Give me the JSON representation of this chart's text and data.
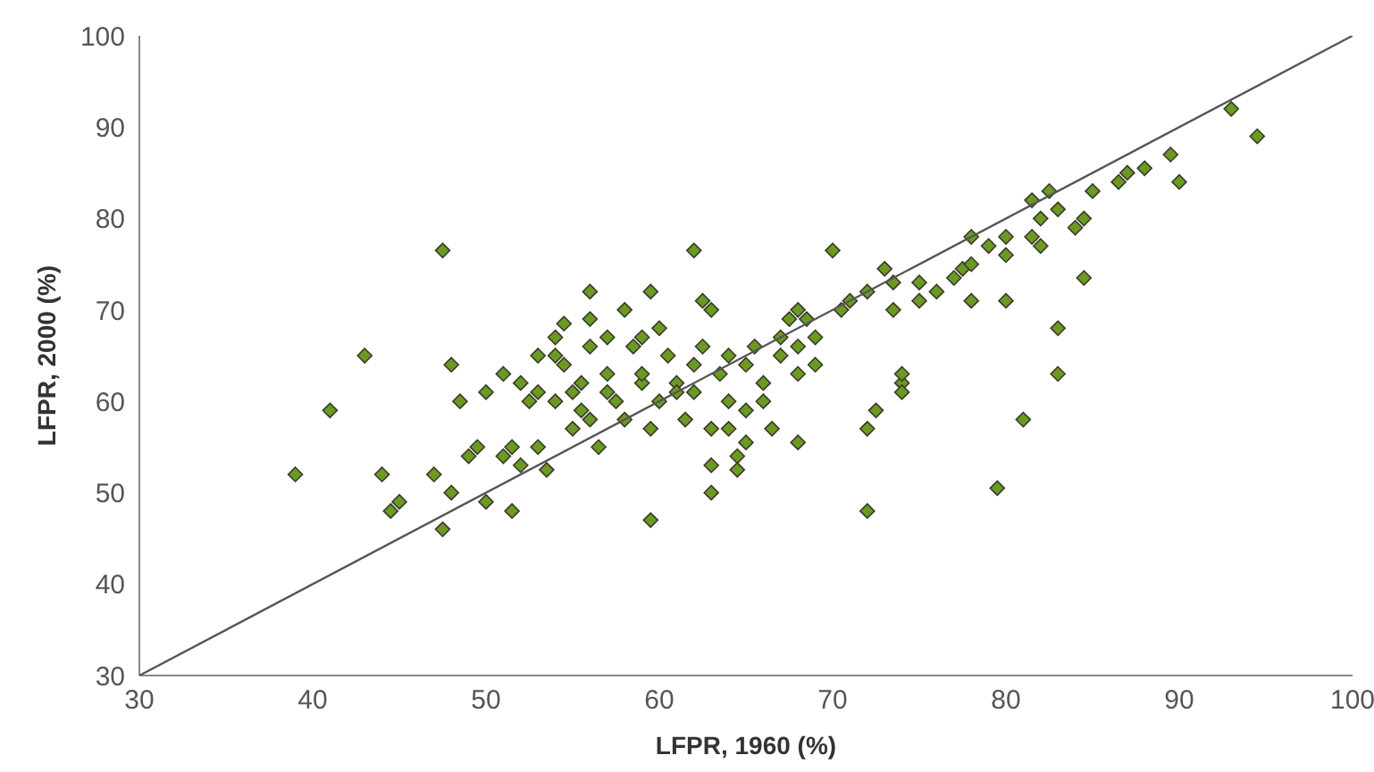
{
  "chart_data": {
    "type": "scatter",
    "xlabel": "LFPR, 1960 (%)",
    "ylabel": "LFPR, 2000 (%)",
    "xlim": [
      30,
      100
    ],
    "ylim": [
      30,
      100
    ],
    "xticks": [
      30,
      40,
      50,
      60,
      70,
      80,
      90,
      100
    ],
    "yticks": [
      30,
      40,
      50,
      60,
      70,
      80,
      90,
      100
    ],
    "grid": false,
    "legend": false,
    "marker": "diamond",
    "series": [
      {
        "color": "#6b9a22",
        "x": [
          39,
          41,
          43,
          44,
          44.5,
          45,
          47,
          47.5,
          47.5,
          48,
          48,
          48.5,
          49,
          49.5,
          50,
          50,
          51,
          51,
          51.5,
          51.5,
          52,
          52,
          52.5,
          53,
          53,
          53,
          53.5,
          54,
          54,
          54,
          54.5,
          54.5,
          55,
          55,
          55.5,
          55.5,
          56,
          56,
          56,
          56,
          56.5,
          57,
          57,
          57,
          57.5,
          58,
          58,
          58.5,
          59,
          59,
          59,
          59.5,
          59.5,
          59.5,
          60,
          60,
          60.5,
          61,
          61,
          61.5,
          62,
          62,
          62,
          62.5,
          62.5,
          63,
          63,
          63,
          63,
          63.5,
          64,
          64,
          64,
          64.5,
          64.5,
          65,
          65,
          65,
          65.5,
          66,
          66,
          66.5,
          67,
          67,
          67.5,
          68,
          68,
          68,
          68,
          68.5,
          69,
          69,
          70,
          70.5,
          71,
          72,
          72,
          72,
          72.5,
          73,
          73.5,
          73.5,
          74,
          74,
          74,
          75,
          75,
          76,
          77,
          77.5,
          78,
          78,
          78,
          79,
          79.5,
          80,
          80,
          80,
          81,
          81.5,
          81.5,
          82,
          82,
          82.5,
          83,
          83,
          83,
          84,
          84.5,
          84.5,
          85,
          86.5,
          87,
          88,
          89.5,
          90,
          93,
          94.5
        ],
        "values": [
          52,
          59,
          65,
          52,
          48,
          49,
          52,
          76.5,
          46,
          64,
          50,
          60,
          54,
          55,
          61,
          49,
          63,
          54,
          48,
          55,
          62,
          53,
          60,
          61,
          65,
          55,
          52.5,
          60,
          65,
          67,
          64,
          68.5,
          57,
          61,
          62,
          59,
          72,
          69,
          66,
          58,
          55,
          63,
          67,
          61,
          60,
          58,
          70,
          66,
          62,
          63,
          67,
          57,
          47,
          72,
          68,
          60,
          65,
          62,
          61,
          58,
          76.5,
          64,
          61,
          71,
          66,
          70,
          57,
          53,
          50,
          63,
          65,
          60,
          57,
          54,
          52.5,
          64,
          59,
          55.5,
          66,
          62,
          60,
          57,
          67,
          65,
          69,
          70,
          66,
          63,
          55.5,
          69,
          64,
          67,
          76.5,
          70,
          71,
          57,
          48,
          72,
          59,
          74.5,
          73,
          70,
          62,
          63,
          61,
          71,
          73,
          72,
          73.5,
          74.5,
          71,
          78,
          75,
          77,
          50.5,
          76,
          78,
          71,
          58,
          78,
          82,
          77,
          80,
          83,
          63,
          68,
          81,
          79,
          73.5,
          80,
          83,
          84,
          85,
          85.5,
          87,
          84,
          92,
          89
        ]
      },
      {
        "type": "line",
        "color": "#555555",
        "marker": "none",
        "x": [
          30,
          100
        ],
        "values": [
          30,
          100
        ]
      }
    ]
  }
}
